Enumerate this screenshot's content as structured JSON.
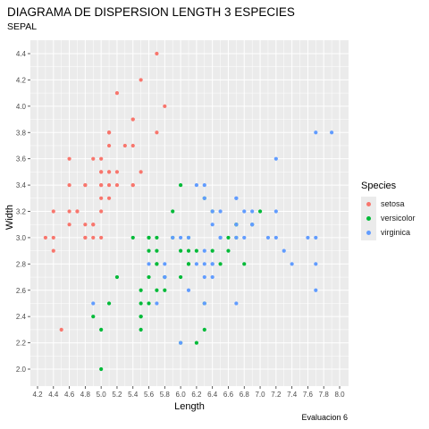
{
  "chart_data": {
    "type": "scatter",
    "title": "DIAGRAMA DE DISPERSION LENGTH 3 ESPECIES",
    "subtitle": "SEPAL",
    "xlabel": "Length",
    "ylabel": "Width",
    "caption": "Evaluacion 6",
    "xlim": [
      4.2,
      8.0
    ],
    "ylim": [
      2.0,
      4.4
    ],
    "x_ticks": [
      "4.2",
      "4.4",
      "4.6",
      "4.8",
      "5.0",
      "5.2",
      "5.4",
      "5.6",
      "5.8",
      "6.0",
      "6.2",
      "6.4",
      "6.6",
      "6.8",
      "7.0",
      "7.2",
      "7.4",
      "7.6",
      "7.8",
      "8.0"
    ],
    "y_ticks": [
      "2.0",
      "2.2",
      "2.4",
      "2.6",
      "2.8",
      "3.0",
      "3.2",
      "3.4",
      "3.6",
      "3.8",
      "4.0",
      "4.2",
      "4.4"
    ],
    "grid": true,
    "legend": {
      "title": "Species",
      "position": "right"
    },
    "series": [
      {
        "name": "setosa",
        "color": "#F8766D",
        "points": [
          [
            5.1,
            3.5
          ],
          [
            4.9,
            3.0
          ],
          [
            4.7,
            3.2
          ],
          [
            4.6,
            3.1
          ],
          [
            5.0,
            3.6
          ],
          [
            5.4,
            3.9
          ],
          [
            4.6,
            3.4
          ],
          [
            5.0,
            3.4
          ],
          [
            4.4,
            2.9
          ],
          [
            4.9,
            3.1
          ],
          [
            5.4,
            3.7
          ],
          [
            4.8,
            3.4
          ],
          [
            4.8,
            3.0
          ],
          [
            4.3,
            3.0
          ],
          [
            5.8,
            4.0
          ],
          [
            5.7,
            4.4
          ],
          [
            5.4,
            3.9
          ],
          [
            5.1,
            3.5
          ],
          [
            5.7,
            3.8
          ],
          [
            5.1,
            3.8
          ],
          [
            5.4,
            3.4
          ],
          [
            5.1,
            3.7
          ],
          [
            4.6,
            3.6
          ],
          [
            5.1,
            3.3
          ],
          [
            4.8,
            3.4
          ],
          [
            5.0,
            3.0
          ],
          [
            5.0,
            3.4
          ],
          [
            5.2,
            3.5
          ],
          [
            5.2,
            3.4
          ],
          [
            4.7,
            3.2
          ],
          [
            4.8,
            3.1
          ],
          [
            5.4,
            3.4
          ],
          [
            5.2,
            4.1
          ],
          [
            5.5,
            4.2
          ],
          [
            4.9,
            3.1
          ],
          [
            5.0,
            3.2
          ],
          [
            5.5,
            3.5
          ],
          [
            4.9,
            3.6
          ],
          [
            4.4,
            3.0
          ],
          [
            5.1,
            3.4
          ],
          [
            5.0,
            3.5
          ],
          [
            4.5,
            2.3
          ],
          [
            4.4,
            3.2
          ],
          [
            5.0,
            3.5
          ],
          [
            5.1,
            3.8
          ],
          [
            4.8,
            3.0
          ],
          [
            5.1,
            3.8
          ],
          [
            4.6,
            3.2
          ],
          [
            5.3,
            3.7
          ],
          [
            5.0,
            3.3
          ]
        ]
      },
      {
        "name": "versicolor",
        "color": "#00BA38",
        "points": [
          [
            7.0,
            3.2
          ],
          [
            6.4,
            3.2
          ],
          [
            6.9,
            3.1
          ],
          [
            5.5,
            2.3
          ],
          [
            6.5,
            2.8
          ],
          [
            5.7,
            2.8
          ],
          [
            6.3,
            3.3
          ],
          [
            4.9,
            2.4
          ],
          [
            6.6,
            2.9
          ],
          [
            5.2,
            2.7
          ],
          [
            5.0,
            2.0
          ],
          [
            5.9,
            3.0
          ],
          [
            6.0,
            2.2
          ],
          [
            6.1,
            2.9
          ],
          [
            5.6,
            2.9
          ],
          [
            6.7,
            3.1
          ],
          [
            5.6,
            3.0
          ],
          [
            5.8,
            2.7
          ],
          [
            6.2,
            2.2
          ],
          [
            5.6,
            2.5
          ],
          [
            5.9,
            3.2
          ],
          [
            6.1,
            2.8
          ],
          [
            6.3,
            2.5
          ],
          [
            6.1,
            2.8
          ],
          [
            6.4,
            2.9
          ],
          [
            6.6,
            3.0
          ],
          [
            6.8,
            2.8
          ],
          [
            6.7,
            3.0
          ],
          [
            6.0,
            2.9
          ],
          [
            5.7,
            2.6
          ],
          [
            5.5,
            2.4
          ],
          [
            5.5,
            2.4
          ],
          [
            5.8,
            2.7
          ],
          [
            6.0,
            2.7
          ],
          [
            5.4,
            3.0
          ],
          [
            6.0,
            3.4
          ],
          [
            6.7,
            3.1
          ],
          [
            6.3,
            2.3
          ],
          [
            5.6,
            3.0
          ],
          [
            5.5,
            2.5
          ],
          [
            5.5,
            2.6
          ],
          [
            6.1,
            3.0
          ],
          [
            5.8,
            2.6
          ],
          [
            5.0,
            2.3
          ],
          [
            5.6,
            2.7
          ],
          [
            5.7,
            3.0
          ],
          [
            5.7,
            2.9
          ],
          [
            6.2,
            2.9
          ],
          [
            5.1,
            2.5
          ],
          [
            5.7,
            2.8
          ]
        ]
      },
      {
        "name": "virginica",
        "color": "#619CFF",
        "points": [
          [
            6.3,
            3.3
          ],
          [
            5.8,
            2.7
          ],
          [
            7.1,
            3.0
          ],
          [
            6.3,
            2.9
          ],
          [
            6.5,
            3.0
          ],
          [
            7.6,
            3.0
          ],
          [
            4.9,
            2.5
          ],
          [
            7.3,
            2.9
          ],
          [
            6.7,
            2.5
          ],
          [
            7.2,
            3.6
          ],
          [
            6.5,
            3.2
          ],
          [
            6.4,
            2.7
          ],
          [
            6.8,
            3.0
          ],
          [
            5.7,
            2.5
          ],
          [
            5.8,
            2.8
          ],
          [
            6.4,
            3.2
          ],
          [
            6.5,
            3.0
          ],
          [
            7.7,
            3.8
          ],
          [
            7.7,
            2.6
          ],
          [
            6.0,
            2.2
          ],
          [
            6.9,
            3.2
          ],
          [
            5.6,
            2.8
          ],
          [
            7.7,
            2.8
          ],
          [
            6.3,
            2.7
          ],
          [
            6.7,
            3.3
          ],
          [
            7.2,
            3.2
          ],
          [
            6.2,
            2.8
          ],
          [
            6.1,
            3.0
          ],
          [
            6.4,
            2.8
          ],
          [
            7.2,
            3.0
          ],
          [
            7.4,
            2.8
          ],
          [
            7.9,
            3.8
          ],
          [
            6.4,
            2.8
          ],
          [
            6.3,
            2.8
          ],
          [
            6.1,
            2.6
          ],
          [
            7.7,
            3.0
          ],
          [
            6.3,
            3.4
          ],
          [
            6.4,
            3.1
          ],
          [
            6.0,
            3.0
          ],
          [
            6.9,
            3.1
          ],
          [
            6.7,
            3.1
          ],
          [
            6.9,
            3.1
          ],
          [
            5.8,
            2.7
          ],
          [
            6.8,
            3.2
          ],
          [
            6.7,
            3.3
          ],
          [
            6.7,
            3.0
          ],
          [
            6.3,
            2.5
          ],
          [
            6.5,
            3.0
          ],
          [
            6.2,
            3.4
          ],
          [
            5.9,
            3.0
          ]
        ]
      }
    ]
  }
}
